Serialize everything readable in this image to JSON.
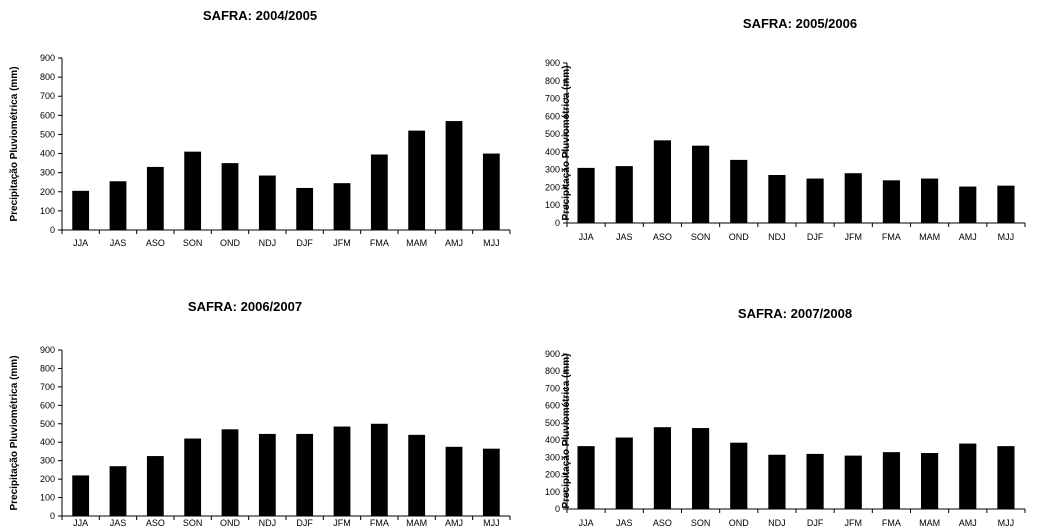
{
  "chart_data": [
    {
      "type": "bar",
      "title": "SAFRA: 2004/2005",
      "ylabel": "Precipitação Pluviométrica (mm)",
      "xlabel": "",
      "ylim": [
        0,
        900
      ],
      "yticks": [
        0,
        100,
        200,
        300,
        400,
        500,
        600,
        700,
        800,
        900
      ],
      "categories": [
        "JJA",
        "JAS",
        "ASO",
        "SON",
        "OND",
        "NDJ",
        "DJF",
        "JFM",
        "FMA",
        "MAM",
        "AMJ",
        "MJJ"
      ],
      "values": [
        205,
        255,
        330,
        410,
        350,
        285,
        220,
        245,
        395,
        520,
        570,
        400
      ],
      "bar_color": "#000000",
      "grid": false,
      "legend": "none"
    },
    {
      "type": "bar",
      "title": "SAFRA: 2005/2006",
      "ylabel": "Precipitação Pluviométrica (mm)",
      "xlabel": "",
      "ylim": [
        0,
        900
      ],
      "yticks": [
        0,
        100,
        200,
        300,
        400,
        500,
        600,
        700,
        800,
        900
      ],
      "categories": [
        "JJA",
        "JAS",
        "ASO",
        "SON",
        "OND",
        "NDJ",
        "DJF",
        "JFM",
        "FMA",
        "MAM",
        "AMJ",
        "MJJ"
      ],
      "values": [
        310,
        320,
        465,
        435,
        355,
        270,
        250,
        280,
        240,
        250,
        205,
        210
      ],
      "bar_color": "#000000",
      "grid": false,
      "legend": "none"
    },
    {
      "type": "bar",
      "title": "SAFRA: 2006/2007",
      "ylabel": "Precipitação Pluviométrica (mm)",
      "xlabel": "",
      "ylim": [
        0,
        900
      ],
      "yticks": [
        0,
        100,
        200,
        300,
        400,
        500,
        600,
        700,
        800,
        900
      ],
      "categories": [
        "JJA",
        "JAS",
        "ASO",
        "SON",
        "OND",
        "NDJ",
        "DJF",
        "JFM",
        "FMA",
        "MAM",
        "AMJ",
        "MJJ"
      ],
      "values": [
        220,
        270,
        325,
        420,
        470,
        445,
        445,
        485,
        500,
        440,
        375,
        365
      ],
      "bar_color": "#000000",
      "grid": false,
      "legend": "none"
    },
    {
      "type": "bar",
      "title": "SAFRA: 2007/2008",
      "ylabel": "Precipitação Pluviométrica (mm)",
      "xlabel": "",
      "ylim": [
        0,
        900
      ],
      "yticks": [
        0,
        100,
        200,
        300,
        400,
        500,
        600,
        700,
        800,
        900
      ],
      "categories": [
        "JJA",
        "JAS",
        "ASO",
        "SON",
        "OND",
        "NDJ",
        "DJF",
        "JFM",
        "FMA",
        "MAM",
        "AMJ",
        "MJJ"
      ],
      "values": [
        365,
        415,
        475,
        470,
        385,
        315,
        320,
        310,
        330,
        325,
        380,
        365
      ],
      "bar_color": "#000000",
      "grid": false,
      "legend": "none"
    }
  ]
}
